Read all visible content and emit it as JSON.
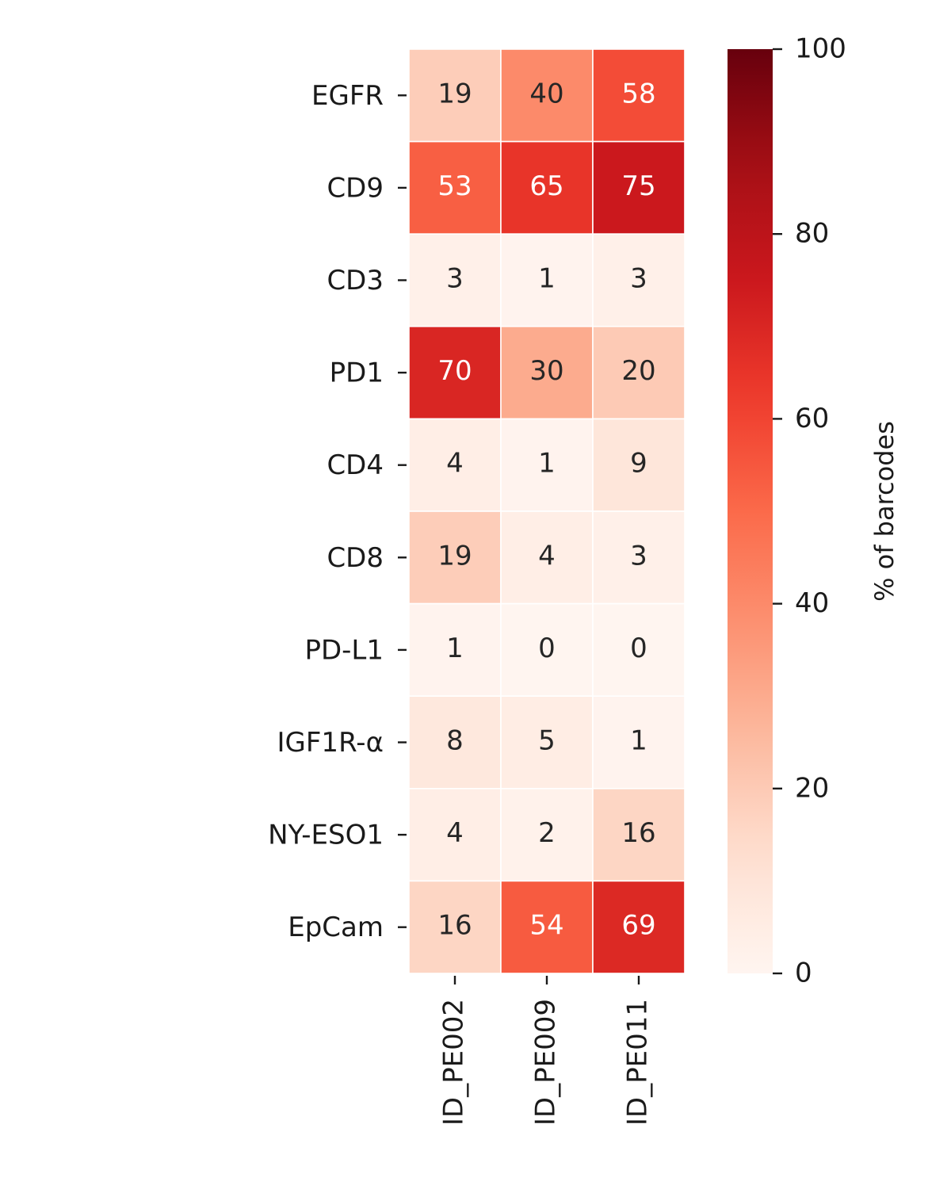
{
  "chart_data": {
    "type": "heatmap",
    "title": "",
    "xlabel": "",
    "ylabel": "",
    "columns": [
      "ID_PE002",
      "ID_PE009",
      "ID_PE011"
    ],
    "rows": [
      "EGFR",
      "CD9",
      "CD3",
      "PD1",
      "CD4",
      "CD8",
      "PD-L1",
      "IGF1R-α",
      "NY-ESO1",
      "EpCam"
    ],
    "values": [
      [
        19,
        40,
        58
      ],
      [
        53,
        65,
        75
      ],
      [
        3,
        1,
        3
      ],
      [
        70,
        30,
        20
      ],
      [
        4,
        1,
        9
      ],
      [
        19,
        4,
        3
      ],
      [
        1,
        0,
        0
      ],
      [
        8,
        5,
        1
      ],
      [
        4,
        2,
        16
      ],
      [
        16,
        54,
        69
      ]
    ],
    "colorbar": {
      "label": "% of barcodes",
      "range": [
        0,
        100
      ],
      "ticks": [
        0,
        20,
        40,
        60,
        80,
        100
      ],
      "colormap": "Reds"
    },
    "annotated": true,
    "colors": {
      "cell_border": "#ffffff",
      "text_dark": "#262626",
      "text_light": "#ffffff"
    }
  }
}
